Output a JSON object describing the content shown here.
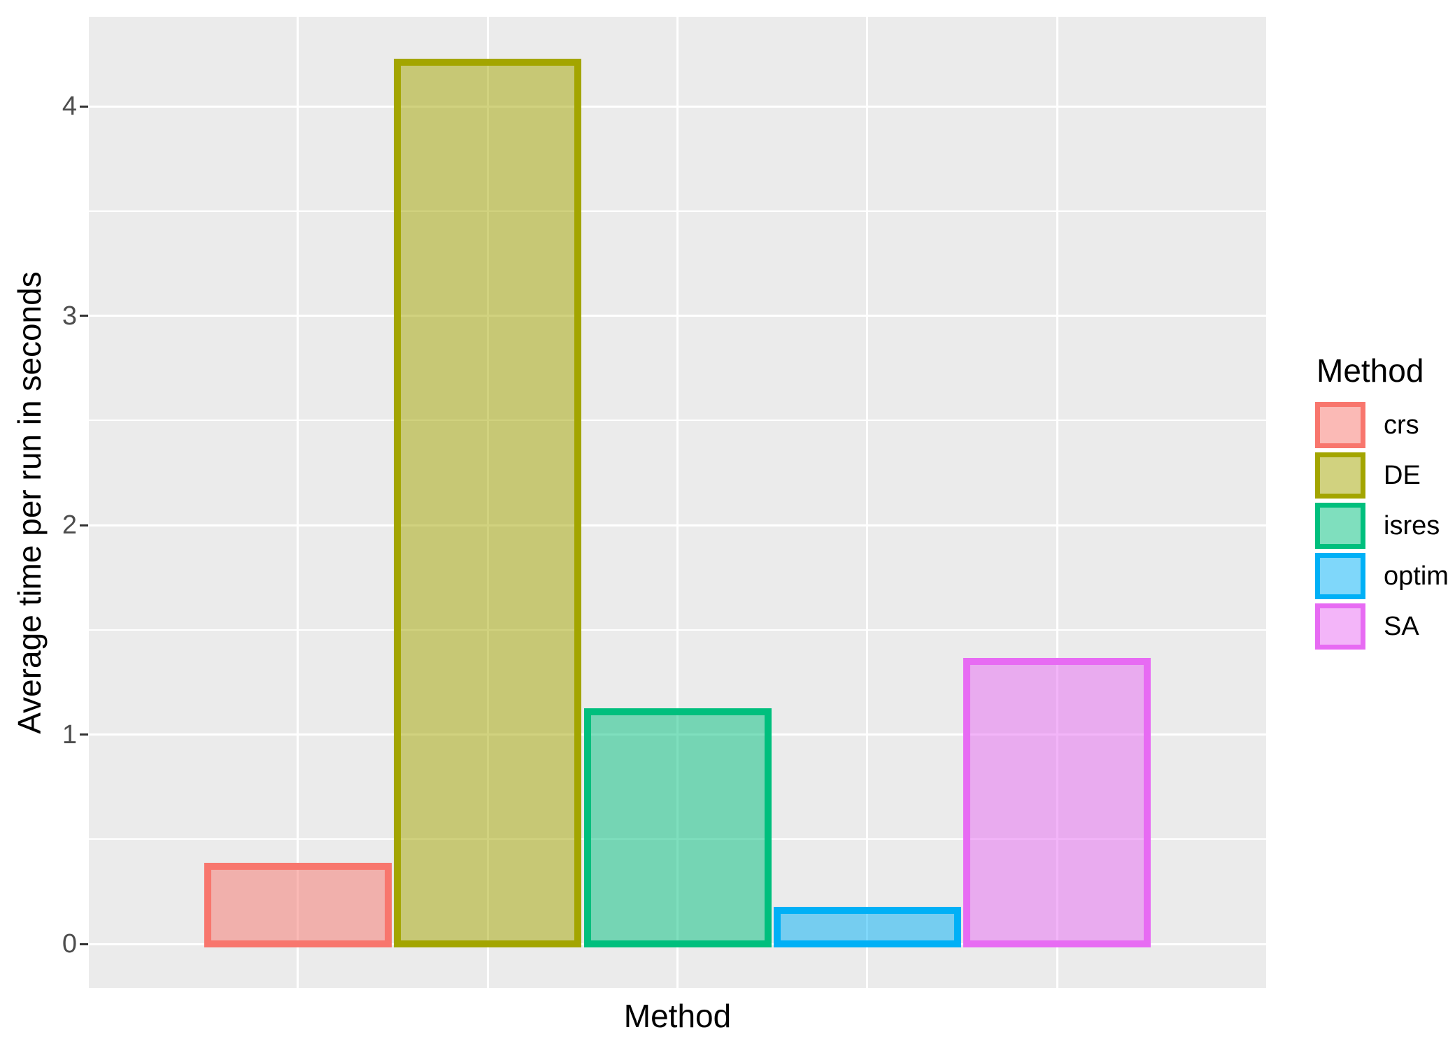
{
  "chart_data": {
    "type": "bar",
    "categories": [
      "crs",
      "DE",
      "isres",
      "optim",
      "SA"
    ],
    "values": [
      0.37,
      4.21,
      1.11,
      0.16,
      1.35
    ],
    "series_colors": [
      "#F8766D",
      "#A3A500",
      "#00BF7D",
      "#00B0F6",
      "#E76BF3"
    ],
    "fill_alpha": 0.5,
    "title": "",
    "xlabel": "Method",
    "ylabel": "Average time per run in seconds",
    "yticks": [
      0,
      1,
      2,
      3,
      4
    ],
    "y_minor_ticks": [
      0.5,
      1.5,
      2.5,
      3.5
    ],
    "ylim": [
      -0.21,
      4.43
    ],
    "grid": {
      "horizontal": "major and minor",
      "vertical": "major at category centers",
      "color": "#FFFFFF"
    },
    "legend": {
      "title": "Method",
      "position": "right",
      "items": [
        {
          "label": "crs",
          "color": "#F8766D"
        },
        {
          "label": "DE",
          "color": "#A3A500"
        },
        {
          "label": "isres",
          "color": "#00BF7D"
        },
        {
          "label": "optim",
          "color": "#00B0F6"
        },
        {
          "label": "SA",
          "color": "#E76BF3"
        }
      ]
    },
    "colors": {
      "panel_background": "#EBEBEB",
      "gridline": "#FFFFFF",
      "tick_label": "#4D4D4D",
      "tick_mark": "#333333",
      "axis_title": "#000000"
    }
  }
}
